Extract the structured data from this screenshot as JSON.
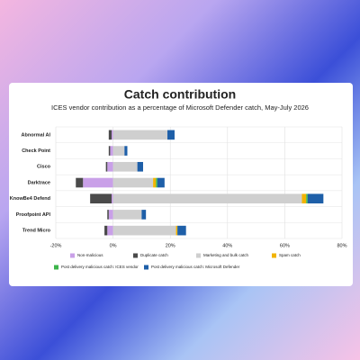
{
  "chart_data": {
    "type": "bar",
    "stacked": true,
    "orientation": "horizontal",
    "title": "Catch contribution",
    "subtitle": "ICES vendor contribution as a percentage of Microsoft Defender catch, May-July 2026",
    "categories": [
      "Abnormal AI",
      "Check Point",
      "Cisco",
      "Darktrace",
      "KnowBe4 Defend",
      "Proofpoint API",
      "Trend Micro"
    ],
    "series": [
      {
        "name": "Non-malicious",
        "color": "#c9a0e8",
        "values": [
          -0.5,
          -1,
          -2,
          -10.5,
          -0.5,
          -1.5,
          -2
        ]
      },
      {
        "name": "Duplicate catch",
        "color": "#4a4a4a",
        "values": [
          -1,
          -0.5,
          -0.5,
          -2.5,
          -7.5,
          -0.5,
          -1
        ]
      },
      {
        "name": "Marketing and bulk catch",
        "color": "#cfcfcf",
        "values": [
          19,
          4,
          8.5,
          14,
          66,
          10,
          22
        ]
      },
      {
        "name": "Spam catch",
        "color": "#f2b400",
        "values": [
          0,
          0,
          0,
          1,
          1.5,
          0,
          0.5
        ]
      },
      {
        "name": "Post delivery malicious catch: ICES vendor",
        "color": "#3cb44b",
        "values": [
          0,
          0,
          0,
          0.5,
          0.5,
          0,
          0
        ]
      },
      {
        "name": "Post delivery malicious catch: Microsoft Defender",
        "color": "#1e5fa8",
        "values": [
          2.5,
          1,
          2,
          2.5,
          5.5,
          1.5,
          3
        ]
      }
    ],
    "xlim": [
      -20,
      80
    ],
    "xticks": [
      {
        "value": -20,
        "label": "-20%"
      },
      {
        "value": 0,
        "label": "0%"
      },
      {
        "value": 20,
        "label": "20%"
      },
      {
        "value": 40,
        "label": "40%"
      },
      {
        "value": 60,
        "label": "60%"
      },
      {
        "value": 80,
        "label": "80%"
      }
    ],
    "grid": true
  }
}
